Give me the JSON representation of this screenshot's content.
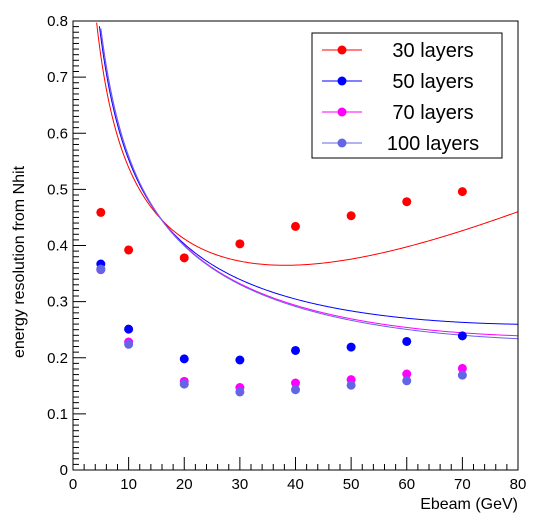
{
  "chart_data": {
    "type": "scatter",
    "title": "",
    "xlabel": "Ebeam (GeV)",
    "ylabel": "energy resolution from Nhit",
    "xlim": [
      0,
      80
    ],
    "ylim": [
      0,
      0.8
    ],
    "x_ticks": [
      "0",
      "10",
      "20",
      "30",
      "40",
      "50",
      "60",
      "70",
      "80"
    ],
    "y_ticks": [
      "0",
      "0.1",
      "0.2",
      "0.3",
      "0.4",
      "0.5",
      "0.6",
      "0.7",
      "0.8"
    ],
    "grid": false,
    "legend_position": "top-right",
    "series": [
      {
        "name": "30 layers",
        "color": "#ff0000",
        "x": [
          5,
          10,
          20,
          30,
          40,
          50,
          60,
          70
        ],
        "y": [
          0.459,
          0.392,
          0.378,
          0.403,
          0.434,
          0.453,
          0.478,
          0.496
        ],
        "fit": {
          "a": 1.6,
          "b": 0.0048,
          "c": 0.18
        }
      },
      {
        "name": "50 layers",
        "color": "#0000ff",
        "x": [
          5,
          10,
          20,
          30,
          40,
          50,
          60,
          70
        ],
        "y": [
          0.367,
          0.251,
          0.198,
          0.196,
          0.213,
          0.219,
          0.229,
          0.239
        ],
        "fit": {
          "a": 1.7,
          "b": 0.0015,
          "c": 0.13
        }
      },
      {
        "name": "70 layers",
        "color": "#ff00ff",
        "x": [
          5,
          10,
          20,
          30,
          40,
          50,
          60,
          70
        ],
        "y": [
          0.357,
          0.228,
          0.158,
          0.147,
          0.155,
          0.161,
          0.171,
          0.181
        ],
        "fit": {
          "a": 1.75,
          "b": 0.0014,
          "c": 0.08
        }
      },
      {
        "name": "100 layers",
        "color": "#6464e6",
        "x": [
          5,
          10,
          20,
          30,
          40,
          50,
          60,
          70
        ],
        "y": [
          0.358,
          0.224,
          0.153,
          0.139,
          0.143,
          0.151,
          0.159,
          0.169
        ],
        "fit": {
          "a": 1.75,
          "b": 0.0013,
          "c": 0.075
        }
      }
    ]
  }
}
